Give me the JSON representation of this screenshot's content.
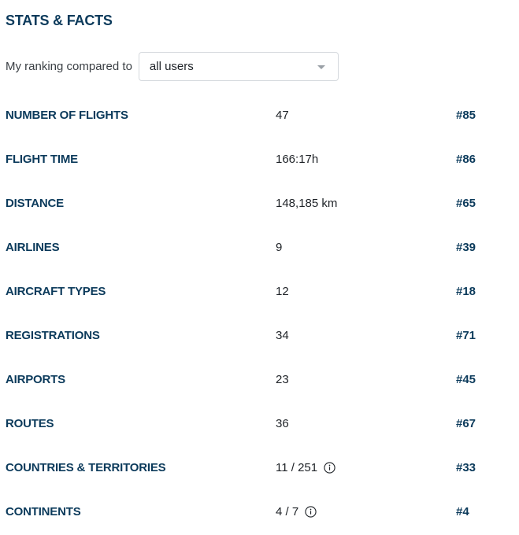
{
  "heading": "STATS & FACTS",
  "ranking": {
    "label": "My ranking compared to",
    "selected": "all users"
  },
  "stats": [
    {
      "label": "NUMBER OF FLIGHTS",
      "value": "47",
      "rank": "#85",
      "info": false
    },
    {
      "label": "FLIGHT TIME",
      "value": "166:17h",
      "rank": "#86",
      "info": false
    },
    {
      "label": "DISTANCE",
      "value": "148,185 km",
      "rank": "#65",
      "info": false
    },
    {
      "label": "AIRLINES",
      "value": "9",
      "rank": "#39",
      "info": false
    },
    {
      "label": "AIRCRAFT TYPES",
      "value": "12",
      "rank": "#18",
      "info": false
    },
    {
      "label": "REGISTRATIONS",
      "value": "34",
      "rank": "#71",
      "info": false
    },
    {
      "label": "AIRPORTS",
      "value": "23",
      "rank": "#45",
      "info": false
    },
    {
      "label": "ROUTES",
      "value": "36",
      "rank": "#67",
      "info": false
    },
    {
      "label": "COUNTRIES & TERRITORIES",
      "value": "11 / 251",
      "rank": "#33",
      "info": true
    },
    {
      "label": "CONTINENTS",
      "value": "4 / 7",
      "rank": "#4",
      "info": true
    }
  ],
  "colors": {
    "heading": "#0b3a5b",
    "text": "#1d2126",
    "muted": "#3a3f44",
    "border": "#d5d9dd"
  },
  "icons": {
    "dropdown": "chevron-down-icon",
    "info": "info-icon"
  }
}
